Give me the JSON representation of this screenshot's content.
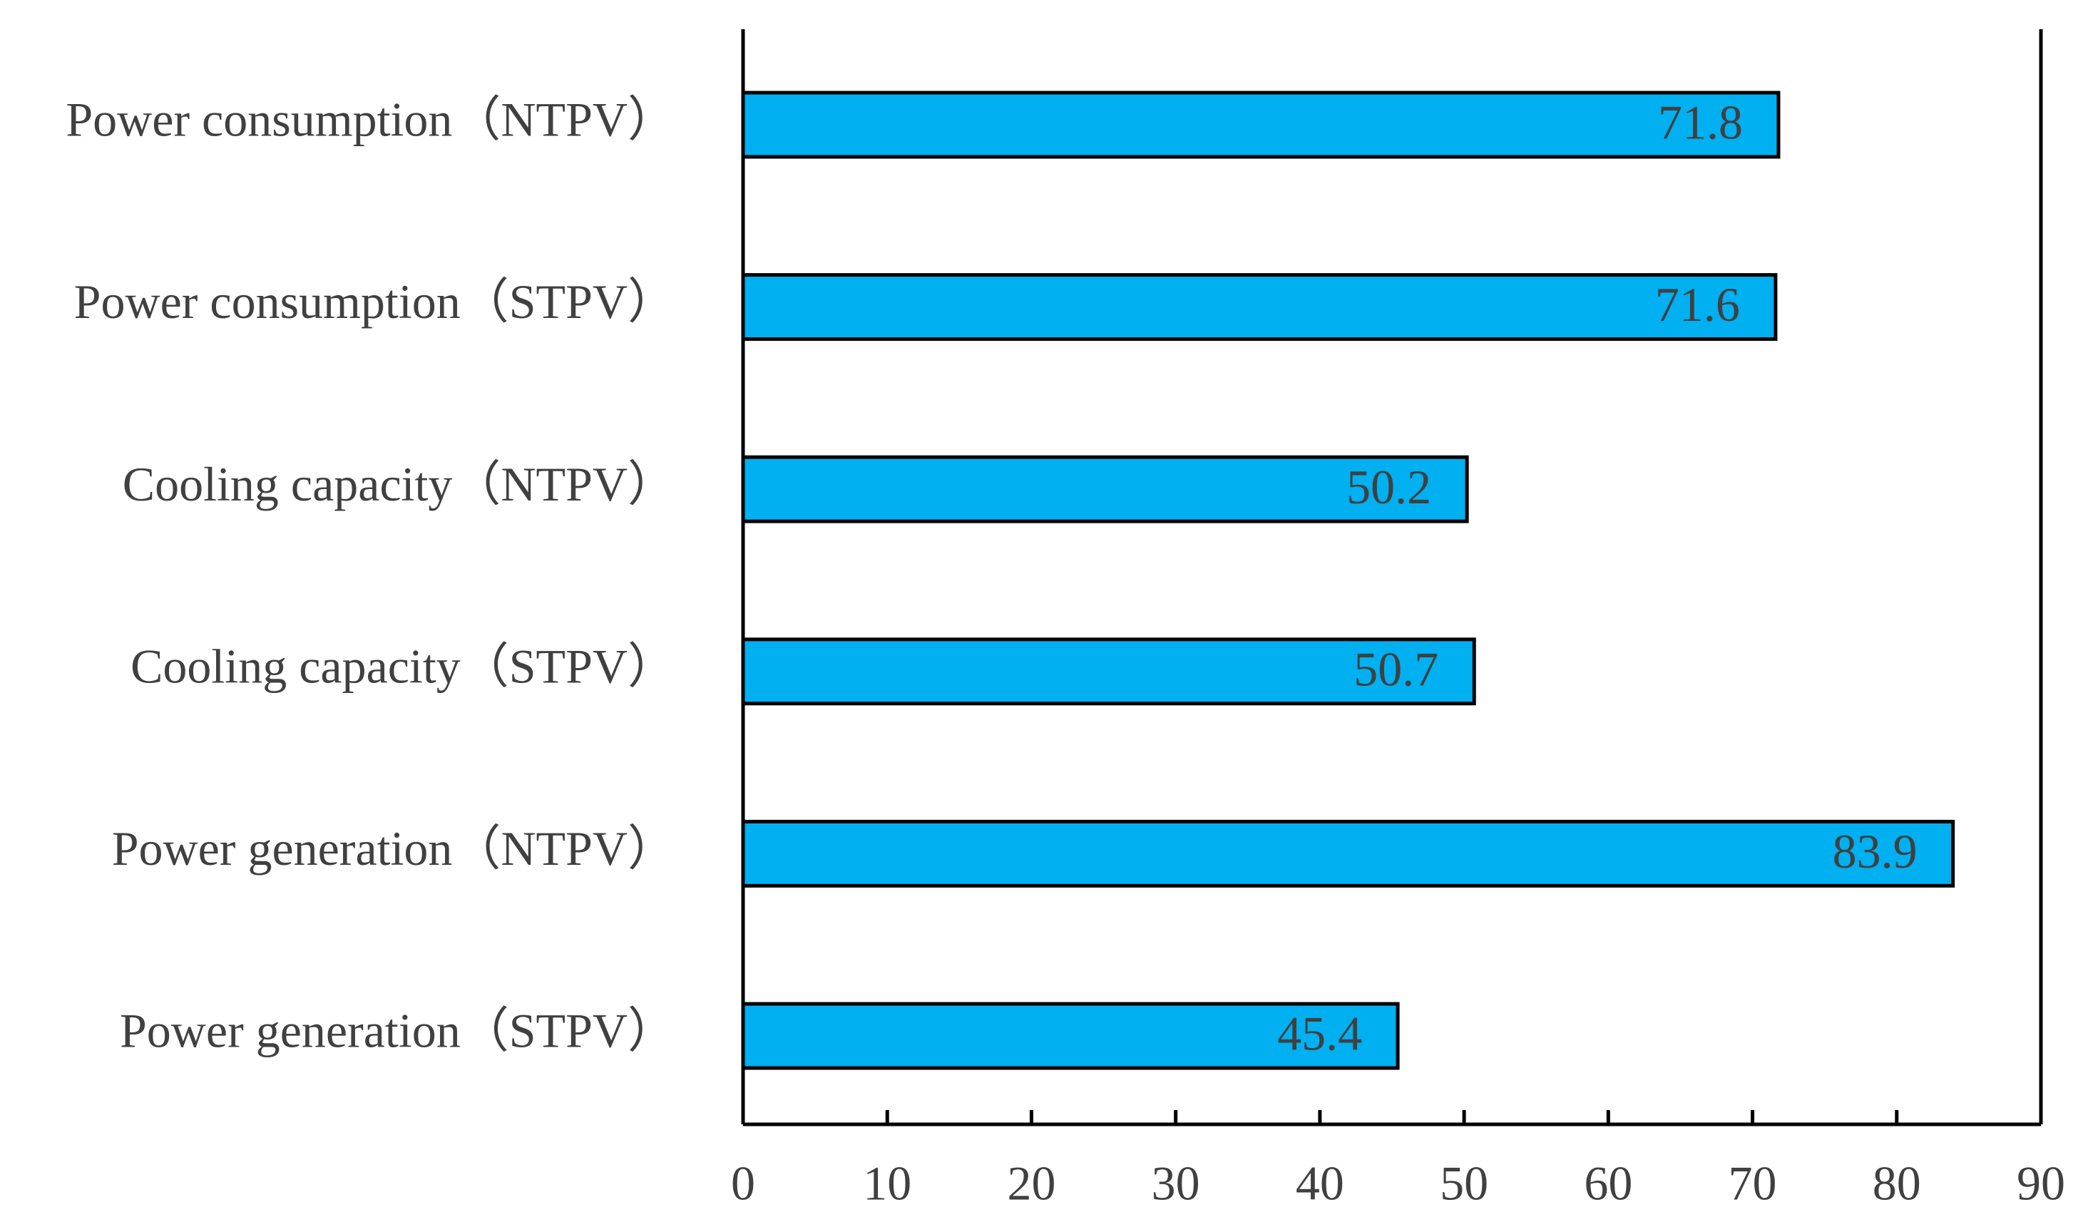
{
  "chart_data": {
    "type": "barh",
    "categories": [
      "Power consumption（NTPV）",
      "Power consumption（STPV）",
      "Cooling capacity（NTPV）",
      "Cooling capacity（STPV）",
      "Power generation（NTPV）",
      "Power generation（STPV）"
    ],
    "values": [
      71.8,
      71.6,
      50.2,
      50.7,
      83.9,
      45.4
    ],
    "color": "#00b0f0",
    "xlim": [
      0,
      90
    ],
    "xticks": [
      0,
      10,
      20,
      30,
      40,
      50,
      60,
      70,
      80,
      90
    ]
  }
}
